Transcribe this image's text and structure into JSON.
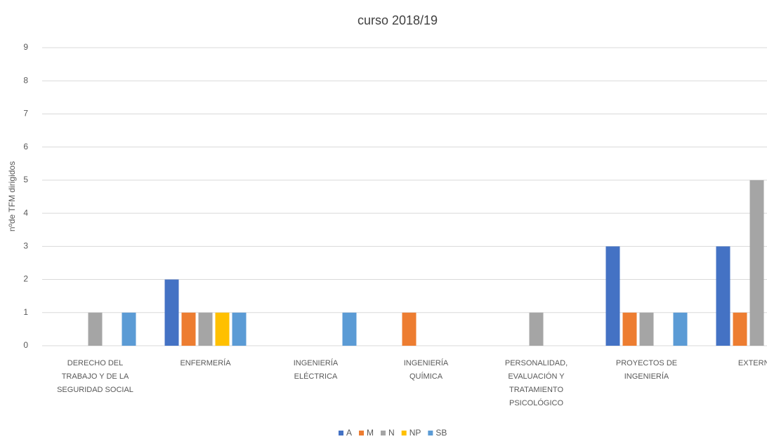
{
  "chart_data": {
    "type": "bar",
    "title": "curso 2018/19",
    "y_label": "nºde TFM dirigidos",
    "categories": [
      [
        "DERECHO DEL",
        "TRABAJO Y DE LA",
        "SEGURIDAD SOCIAL"
      ],
      [
        "ENFERMERÍA"
      ],
      [
        "INGENIERÍA",
        "ELÉCTRICA"
      ],
      [
        "INGENIERÍA",
        "QUÍMICA"
      ],
      [
        "PERSONALIDAD,",
        "EVALUACIÓN Y",
        "TRATAMIENTO",
        "PSICOLÓGICO"
      ],
      [
        "PROYECTOS DE",
        "INGENIERÍA"
      ],
      [
        "EXTERNO"
      ]
    ],
    "series": [
      {
        "name": "A",
        "color": "#4472c4",
        "values": [
          0,
          2,
          0,
          0,
          0,
          3,
          3
        ]
      },
      {
        "name": "M",
        "color": "#ed7d31",
        "values": [
          0,
          1,
          0,
          1,
          0,
          1,
          1
        ]
      },
      {
        "name": "N",
        "color": "#a5a5a5",
        "values": [
          1,
          1,
          0,
          0,
          1,
          1,
          5
        ]
      },
      {
        "name": "NP",
        "color": "#ffc000",
        "values": [
          0,
          1,
          0,
          0,
          0,
          0,
          null
        ]
      },
      {
        "name": "SB",
        "color": "#5b9bd5",
        "values": [
          1,
          1,
          1,
          0,
          0,
          1,
          null
        ]
      }
    ],
    "ylim": [
      0,
      9
    ],
    "yticks": [
      0,
      1,
      2,
      3,
      4,
      5,
      6,
      7,
      8,
      9
    ],
    "grid": true,
    "legend": "bottom"
  }
}
